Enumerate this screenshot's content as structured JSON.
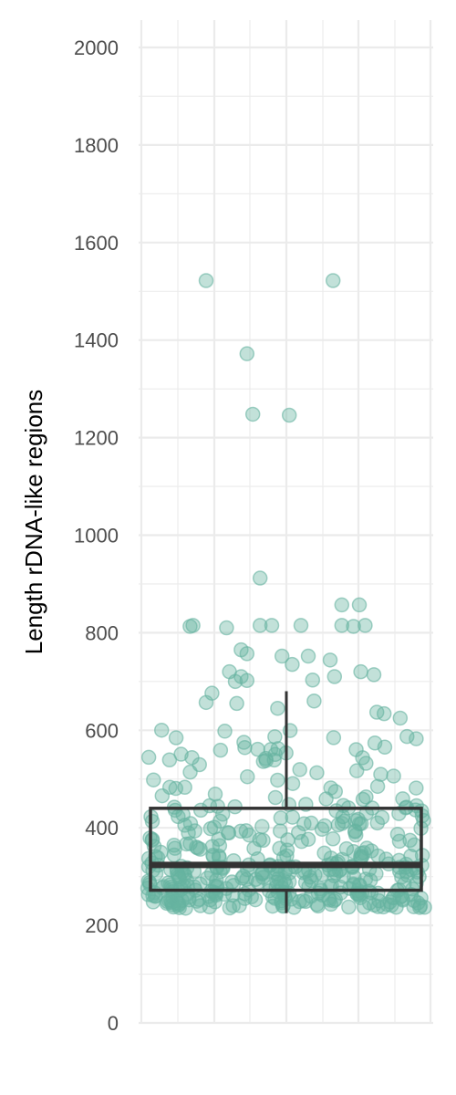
{
  "chart_data": {
    "type": "scatter",
    "overlay": "boxplot",
    "title": "",
    "xlabel": "",
    "ylabel": "Length rDNA-like regions",
    "ylim": [
      0,
      2050
    ],
    "yticks": [
      0,
      200,
      400,
      600,
      800,
      1000,
      1200,
      1400,
      1600,
      1800,
      2000
    ],
    "grid": true,
    "legend": "none",
    "colors": {
      "points": "#66b3a0",
      "box": "#333333",
      "grid": "#ebebeb"
    },
    "boxplot": {
      "min": 225,
      "q1": 272,
      "median": 324,
      "q3": 440,
      "whisker_high": 680
    },
    "outliers": [
      {
        "jitter": -0.55,
        "y": 1522
      },
      {
        "jitter": 0.32,
        "y": 1522
      },
      {
        "jitter": -0.27,
        "y": 1372
      },
      {
        "jitter": -0.23,
        "y": 1248
      },
      {
        "jitter": 0.02,
        "y": 1246
      },
      {
        "jitter": -0.18,
        "y": 912
      },
      {
        "jitter": -0.66,
        "y": 813
      },
      {
        "jitter": -0.64,
        "y": 815
      },
      {
        "jitter": -0.41,
        "y": 810
      },
      {
        "jitter": -0.18,
        "y": 815
      },
      {
        "jitter": -0.1,
        "y": 815
      },
      {
        "jitter": 0.1,
        "y": 815
      },
      {
        "jitter": 0.38,
        "y": 857
      },
      {
        "jitter": 0.5,
        "y": 857
      },
      {
        "jitter": 0.38,
        "y": 815
      },
      {
        "jitter": 0.46,
        "y": 813
      },
      {
        "jitter": 0.54,
        "y": 815
      },
      {
        "jitter": -0.31,
        "y": 765
      },
      {
        "jitter": -0.27,
        "y": 757
      },
      {
        "jitter": -0.03,
        "y": 752
      },
      {
        "jitter": 0.15,
        "y": 752
      },
      {
        "jitter": 0.3,
        "y": 744
      },
      {
        "jitter": 0.04,
        "y": 735
      },
      {
        "jitter": -0.39,
        "y": 720
      },
      {
        "jitter": 0.51,
        "y": 720
      },
      {
        "jitter": -0.51,
        "y": 676
      },
      {
        "jitter": -0.55,
        "y": 657
      },
      {
        "jitter": -0.35,
        "y": 700
      },
      {
        "jitter": -0.31,
        "y": 710
      },
      {
        "jitter": -0.27,
        "y": 702
      },
      {
        "jitter": 0.33,
        "y": 710
      },
      {
        "jitter": 0.18,
        "y": 703
      },
      {
        "jitter": 0.6,
        "y": 714
      },
      {
        "jitter": -0.34,
        "y": 655
      },
      {
        "jitter": -0.06,
        "y": 645
      },
      {
        "jitter": 0.19,
        "y": 660
      },
      {
        "jitter": 0.62,
        "y": 637
      },
      {
        "jitter": 0.67,
        "y": 634
      },
      {
        "jitter": 0.78,
        "y": 625
      }
    ],
    "points_summary": "dense cluster of several hundred jittered points between about 225 and 680"
  }
}
